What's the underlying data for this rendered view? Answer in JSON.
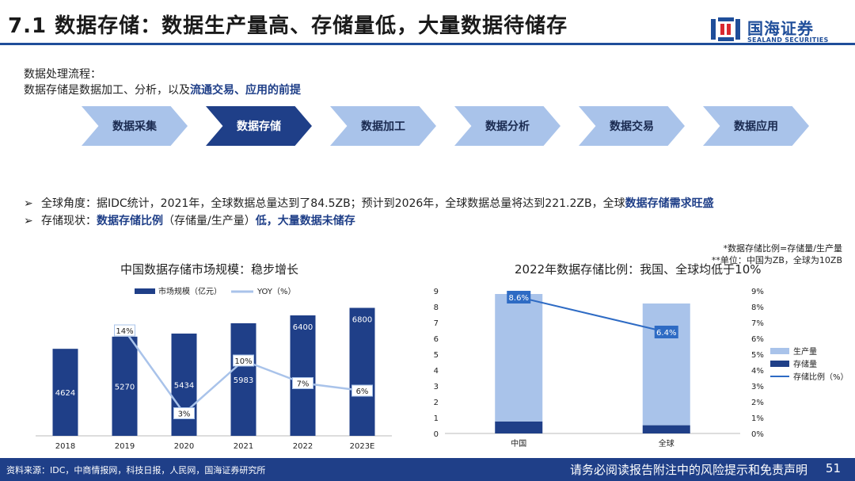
{
  "header": {
    "title": "7.1 数据存储：数据生产量高、存储量低，大量数据待储存",
    "logo_cn": "国海证券",
    "logo_en": "SEALAND SECURITIES"
  },
  "intro": {
    "line1": "数据处理流程：",
    "line2_plain": "数据存储是数据加工、分析，以及",
    "line2_highlight": "流通交易、应用的前提"
  },
  "process": {
    "steps": [
      "数据采集",
      "数据存储",
      "数据加工",
      "数据分析",
      "数据交易",
      "数据应用"
    ],
    "active_index": 1
  },
  "bullets": {
    "b1_plain": "全球角度：据IDC统计，2021年，全球数据总量达到了84.5ZB；预计到2026年，全球数据总量将达到221.2ZB，全球",
    "b1_highlight": "数据存储需求旺盛",
    "b2_label": "存储现状：",
    "b2_h1": "数据存储比例",
    "b2_mid": "（存储量/生产量）",
    "b2_h2": "低，大量数据未储存",
    "marker": "➢"
  },
  "notes": {
    "n1": "*数据存储比例=存储量/生产量",
    "n2": "**单位：中国为ZB，全球为10ZB"
  },
  "chart_data": [
    {
      "type": "bar",
      "title": "中国数据存储市场规模：稳步增长",
      "categories": [
        "2018",
        "2019",
        "2020",
        "2021",
        "2022",
        "2023E"
      ],
      "series": [
        {
          "name": "市场规模（亿元）",
          "type": "bar",
          "values": [
            4624,
            5270,
            5434,
            5983,
            6400,
            6800
          ],
          "color": "#1f3f88"
        },
        {
          "name": "YOY（%）",
          "type": "line",
          "values": [
            null,
            14,
            3,
            10,
            7,
            6
          ],
          "labels": [
            "",
            "14%",
            "3%",
            "10%",
            "7%",
            "6%"
          ],
          "color": "#a9c3ea"
        }
      ],
      "ylim": [
        0,
        8000
      ],
      "y2lim": [
        0,
        20
      ]
    },
    {
      "type": "bar",
      "title": "2022年数据存储比例：我国、全球均低于10%",
      "categories": [
        "中国",
        "全球"
      ],
      "series": [
        {
          "name": "生产量",
          "type": "bar",
          "values": [
            8.8,
            8.2
          ],
          "color": "#a9c3ea"
        },
        {
          "name": "存储量",
          "type": "bar",
          "values": [
            0.76,
            0.52
          ],
          "color": "#1f3f88"
        },
        {
          "name": "存储比例（%）",
          "type": "line",
          "axis": "right",
          "values": [
            8.6,
            6.4
          ],
          "labels": [
            "8.6%",
            "6.4%"
          ],
          "color": "#2e6bc4"
        }
      ],
      "ylim": [
        0,
        9
      ],
      "yticks": [
        "0",
        "1",
        "2",
        "3",
        "4",
        "5",
        "6",
        "7",
        "8",
        "9"
      ],
      "y2lim": [
        0,
        9
      ],
      "y2ticks": [
        "0%",
        "1%",
        "2%",
        "3%",
        "4%",
        "5%",
        "6%",
        "7%",
        "8%",
        "9%"
      ]
    }
  ],
  "footer": {
    "source": "资料来源：IDC，中商情报网，科技日报，人民网，国海证券研究所",
    "disclaimer": "请务必阅读报告附注中的风险提示和免责声明",
    "page": "51"
  }
}
